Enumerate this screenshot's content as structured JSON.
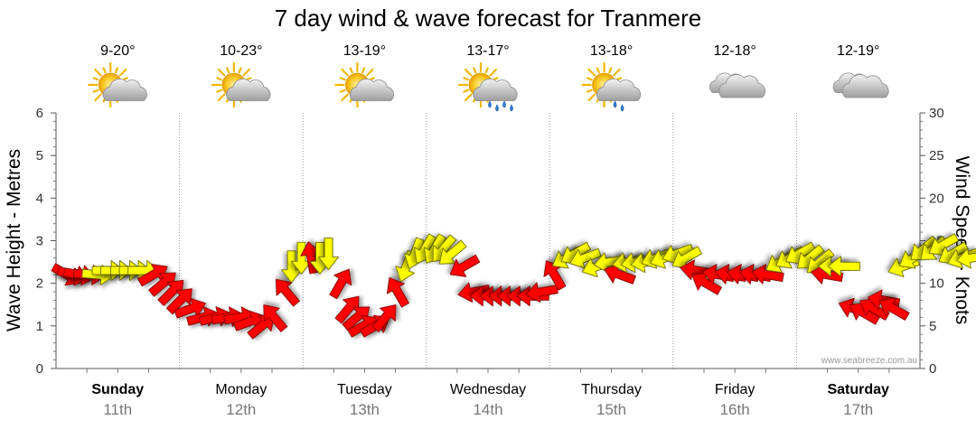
{
  "header": {
    "title": "7 day wind & wave forecast for Tranmere"
  },
  "watermark": "www.seabreeze.com.au",
  "chart_data": {
    "type": "line",
    "title": "7 day wind & wave forecast for Tranmere",
    "ylabel_left": "Wave Height - Metres",
    "ylabel_right": "Wind Speed - Knots",
    "ylim_left": [
      0,
      6
    ],
    "ylim_right": [
      0,
      30
    ],
    "left_ticks": [
      "0",
      "1",
      "2",
      "3",
      "4",
      "5",
      "6"
    ],
    "right_ticks": [
      "0",
      "5",
      "10",
      "15",
      "20",
      "25",
      "30"
    ],
    "grid": true,
    "days": [
      {
        "name": "Sunday",
        "date": "11th",
        "temp": "9-20°",
        "icon": "sun-cloud-icon",
        "bold": true
      },
      {
        "name": "Monday",
        "date": "12th",
        "temp": "10-23°",
        "icon": "sun-cloud-icon",
        "bold": false
      },
      {
        "name": "Tuesday",
        "date": "13th",
        "temp": "13-19°",
        "icon": "sun-cloud-icon",
        "bold": false
      },
      {
        "name": "Wednesday",
        "date": "14th",
        "temp": "13-17°",
        "icon": "sun-cloud-rain-icon",
        "bold": false
      },
      {
        "name": "Thursday",
        "date": "15th",
        "temp": "13-18°",
        "icon": "sun-cloud-showers-icon",
        "bold": false
      },
      {
        "name": "Friday",
        "date": "16th",
        "temp": "12-18°",
        "icon": "cloud-icon",
        "bold": false
      },
      {
        "name": "Saturday",
        "date": "17th",
        "temp": "12-19°",
        "icon": "cloud-icon",
        "bold": true
      }
    ],
    "series": [
      {
        "name": "Wind Speed",
        "unit": "knots",
        "legend": false,
        "color_strong": "#ff0000",
        "color_light": "#ffff00",
        "points": [
          [
            0.0,
            11,
            "strong",
            30
          ],
          [
            0.05,
            11,
            "strong",
            15
          ],
          [
            0.1,
            11,
            "strong",
            10
          ],
          [
            0.18,
            11,
            "strong",
            5
          ],
          [
            0.25,
            11,
            "light",
            5
          ],
          [
            0.33,
            11.5,
            "light",
            0
          ],
          [
            0.4,
            11.5,
            "light",
            0
          ],
          [
            0.48,
            11.5,
            "light",
            0
          ],
          [
            0.55,
            11.5,
            "light",
            0
          ],
          [
            0.62,
            11.5,
            "light",
            0
          ],
          [
            0.7,
            11,
            "strong",
            -30
          ],
          [
            0.78,
            10,
            "strong",
            -40
          ],
          [
            0.85,
            9,
            "strong",
            -45
          ],
          [
            0.92,
            8,
            "strong",
            -45
          ],
          [
            1.0,
            7,
            "strong",
            -20
          ],
          [
            1.1,
            6,
            "strong",
            -15
          ],
          [
            1.2,
            6,
            "strong",
            -15
          ],
          [
            1.3,
            6,
            "strong",
            -10
          ],
          [
            1.4,
            6,
            "strong",
            -10
          ],
          [
            1.48,
            5.5,
            "strong",
            -20
          ],
          [
            1.58,
            5,
            "strong",
            -40
          ],
          [
            1.68,
            6,
            "strong",
            -130
          ],
          [
            1.78,
            9,
            "strong",
            -130
          ],
          [
            1.82,
            12,
            "light",
            90
          ],
          [
            1.9,
            13,
            "light",
            90
          ],
          [
            1.98,
            13,
            "strong",
            -100
          ],
          [
            2.05,
            13,
            "light",
            90
          ],
          [
            2.12,
            13.5,
            "light",
            90
          ],
          [
            2.22,
            10,
            "strong",
            -60
          ],
          [
            2.28,
            7,
            "strong",
            -50
          ],
          [
            2.35,
            6,
            "strong",
            -40
          ],
          [
            2.4,
            5,
            "strong",
            -30
          ],
          [
            2.5,
            5,
            "strong",
            -30
          ],
          [
            2.58,
            6,
            "strong",
            -50
          ],
          [
            2.68,
            9,
            "strong",
            -120
          ],
          [
            2.75,
            12,
            "light",
            110
          ],
          [
            2.82,
            13.5,
            "light",
            110
          ],
          [
            2.9,
            14,
            "light",
            120
          ],
          [
            2.98,
            14,
            "light",
            120
          ],
          [
            3.05,
            14,
            "light",
            130
          ],
          [
            3.12,
            13.5,
            "light",
            140
          ],
          [
            3.22,
            12,
            "strong",
            150
          ],
          [
            3.3,
            9,
            "strong",
            170
          ],
          [
            3.4,
            8.5,
            "strong",
            180
          ],
          [
            3.48,
            8.5,
            "strong",
            180
          ],
          [
            3.55,
            8.5,
            "strong",
            180
          ],
          [
            3.62,
            8.5,
            "strong",
            180
          ],
          [
            3.7,
            8.5,
            "strong",
            180
          ],
          [
            3.78,
            8.5,
            "strong",
            180
          ],
          [
            3.85,
            9,
            "strong",
            170
          ],
          [
            3.95,
            11,
            "strong",
            -120
          ],
          [
            4.05,
            13,
            "light",
            150
          ],
          [
            4.12,
            13.5,
            "light",
            150
          ],
          [
            4.2,
            13,
            "light",
            160
          ],
          [
            4.3,
            12,
            "light",
            160
          ],
          [
            4.4,
            12.5,
            "light",
            170
          ],
          [
            4.48,
            11,
            "strong",
            -160
          ],
          [
            4.55,
            12.5,
            "light",
            170
          ],
          [
            4.62,
            12.5,
            "light",
            170
          ],
          [
            4.7,
            12.5,
            "light",
            170
          ],
          [
            4.78,
            13,
            "light",
            160
          ],
          [
            4.85,
            13,
            "light",
            160
          ],
          [
            4.95,
            13.5,
            "light",
            160
          ],
          [
            5.02,
            13,
            "light",
            150
          ],
          [
            5.1,
            11.5,
            "strong",
            -170
          ],
          [
            5.18,
            10,
            "strong",
            -150
          ],
          [
            5.28,
            11,
            "strong",
            -170
          ],
          [
            5.38,
            11,
            "strong",
            -170
          ],
          [
            5.48,
            11,
            "strong",
            -170
          ],
          [
            5.58,
            11,
            "strong",
            -170
          ],
          [
            5.68,
            11,
            "strong",
            -170
          ],
          [
            5.78,
            12.5,
            "light",
            150
          ],
          [
            5.86,
            13,
            "light",
            150
          ],
          [
            5.94,
            13.5,
            "light",
            150
          ],
          [
            6.02,
            13,
            "light",
            140
          ],
          [
            6.1,
            12.5,
            "light",
            140
          ],
          [
            6.16,
            11,
            "strong",
            -170
          ],
          [
            6.22,
            12,
            "light",
            180
          ],
          [
            6.3,
            12,
            "light",
            180
          ],
          [
            6.38,
            7,
            "strong",
            -160
          ],
          [
            6.46,
            6.5,
            "strong",
            -150
          ],
          [
            6.54,
            7,
            "strong",
            -150
          ],
          [
            6.62,
            8,
            "strong",
            -170
          ],
          [
            6.7,
            7,
            "strong",
            -150
          ],
          [
            6.78,
            12,
            "light",
            160
          ],
          [
            6.86,
            13,
            "light",
            150
          ],
          [
            6.94,
            14,
            "light",
            140
          ],
          [
            7.02,
            14,
            "light",
            140
          ],
          [
            7.1,
            14.5,
            "light",
            150
          ],
          [
            7.18,
            13.5,
            "light",
            150
          ],
          [
            7.26,
            13,
            "light",
            160
          ],
          [
            7.34,
            13,
            "light",
            170
          ]
        ]
      }
    ]
  }
}
